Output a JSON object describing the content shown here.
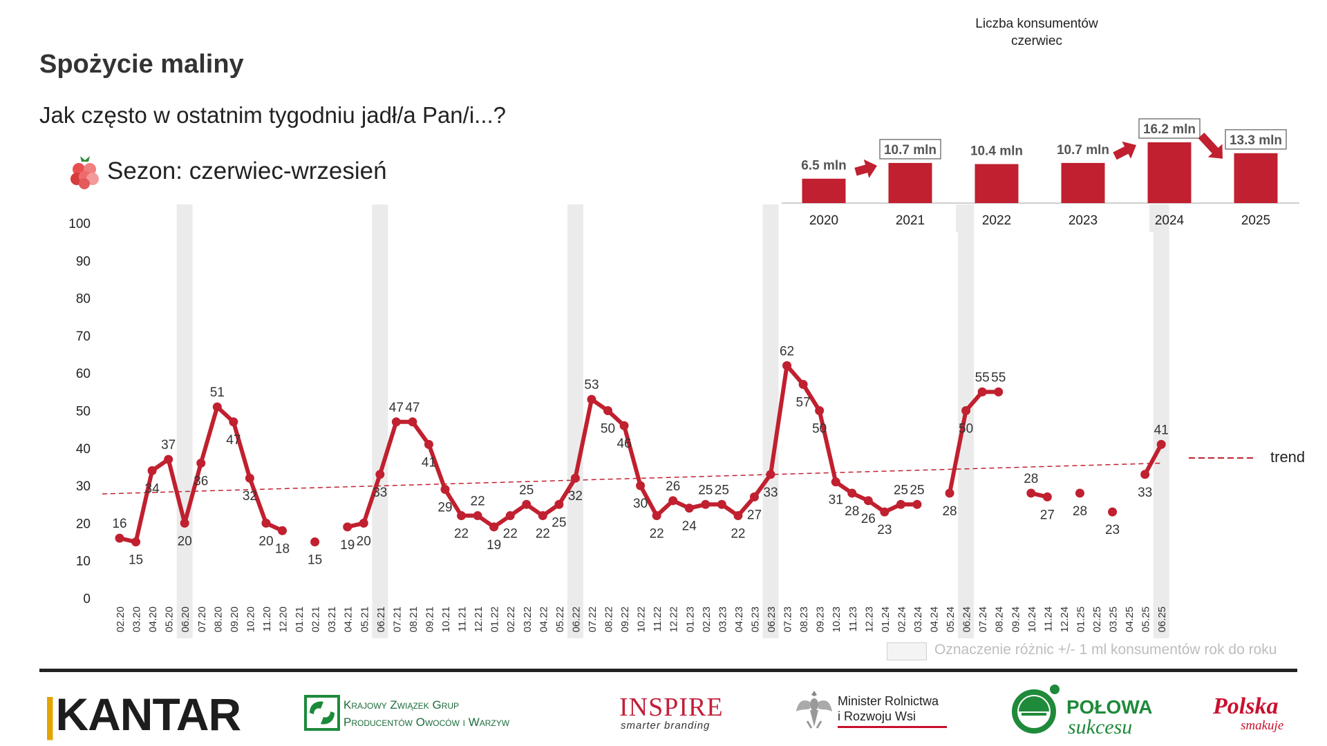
{
  "header": {
    "title": "Spożycie maliny",
    "subtitle": "Jak często w ostatnim tygodniu jadł/a Pan/i...?",
    "season": "Sezon: czerwiec-wrzesień"
  },
  "inset": {
    "caption_line1": "Liczba konsumentów",
    "caption_line2": "czerwiec"
  },
  "legend": {
    "trend_label": "trend"
  },
  "note": "Oznaczenie różnic +/- 1 ml konsumentów rok do roku",
  "colors": {
    "series": "#c0202f",
    "trend": "#c0202f",
    "band": "#ebebeb",
    "arrow": "#c0202f"
  },
  "icons": {
    "season": "raspberry-icon",
    "arrows": "red-arrow-icon"
  },
  "logos": {
    "kantar": "KANTAR",
    "kzgp_line1": "Krajowy Związek Grup",
    "kzgp_line2": "Producentów Owoców i Warzyw",
    "inspire": "INSPIRE",
    "inspire_tagline": "smarter branding",
    "minister_line1": "Minister Rolnictwa",
    "minister_line2": "i Rozwoju Wsi",
    "polowa_line1": "POŁOWA",
    "polowa_line2": "sukcesu",
    "polska_line1": "Polska",
    "polska_line2": "smakuje"
  },
  "chart_data": [
    {
      "type": "line",
      "title": "",
      "ylim": [
        0,
        100
      ],
      "yticks": [
        0,
        10,
        20,
        30,
        40,
        50,
        60,
        70,
        80,
        90,
        100
      ],
      "grid": false,
      "categories": [
        "02.20",
        "03.20",
        "04.20",
        "05.20",
        "06.20",
        "07.20",
        "08.20",
        "09.20",
        "10.20",
        "11.20",
        "12.20",
        "01.21",
        "02.21",
        "03.21",
        "04.21",
        "05.21",
        "06.21",
        "07.21",
        "08.21",
        "09.21",
        "10.21",
        "11.21",
        "12.21",
        "01.22",
        "02.22",
        "03.22",
        "04.22",
        "05.22",
        "06.22",
        "07.22",
        "08.22",
        "09.22",
        "10.22",
        "11.22",
        "12.22",
        "01.23",
        "02.23",
        "03.23",
        "04.23",
        "05.23",
        "06.23",
        "07.23",
        "08.23",
        "09.23",
        "10.23",
        "11.23",
        "12.23",
        "01.24",
        "02.24",
        "03.24",
        "04.24",
        "05.24",
        "06.24",
        "07.24",
        "08.24",
        "09.24",
        "10.24",
        "11.24",
        "12.24",
        "01.25",
        "02.25",
        "03.25",
        "04.25",
        "05.25",
        "06.25"
      ],
      "highlighted_categories": [
        "06.20",
        "06.21",
        "06.22",
        "06.23",
        "06.24",
        "06.25"
      ],
      "series": [
        {
          "values": [
            16,
            15,
            34,
            37,
            20,
            36,
            51,
            47,
            32,
            20,
            18,
            null,
            15,
            null,
            19,
            20,
            33,
            47,
            47,
            41,
            29,
            22,
            22,
            19,
            22,
            25,
            22,
            25,
            32,
            53,
            50,
            46,
            30,
            22,
            26,
            24,
            25,
            25,
            22,
            27,
            33,
            62,
            57,
            50,
            31,
            28,
            26,
            23,
            25,
            25,
            null,
            28,
            50,
            55,
            55,
            null,
            28,
            27,
            null,
            28,
            null,
            23,
            null,
            33,
            41
          ]
        }
      ],
      "trend": {
        "label": "trend",
        "start": 27.8,
        "end": 36.0
      }
    },
    {
      "type": "bar",
      "title": "Liczba konsumentów czerwiec",
      "categories": [
        "2020",
        "2021",
        "2022",
        "2023",
        "2024",
        "2025"
      ],
      "values": [
        6.5,
        10.7,
        10.4,
        10.7,
        16.2,
        13.3
      ],
      "labels": [
        "6.5 mln",
        "10.7 mln",
        "10.4 mln",
        "10.7 mln",
        "16.2 mln",
        "13.3 mln"
      ],
      "boxed": [
        false,
        true,
        false,
        false,
        true,
        true
      ],
      "arrows_before": [
        false,
        true,
        false,
        false,
        true,
        true
      ],
      "highlighted_categories": [
        "2022",
        "2024"
      ]
    }
  ]
}
